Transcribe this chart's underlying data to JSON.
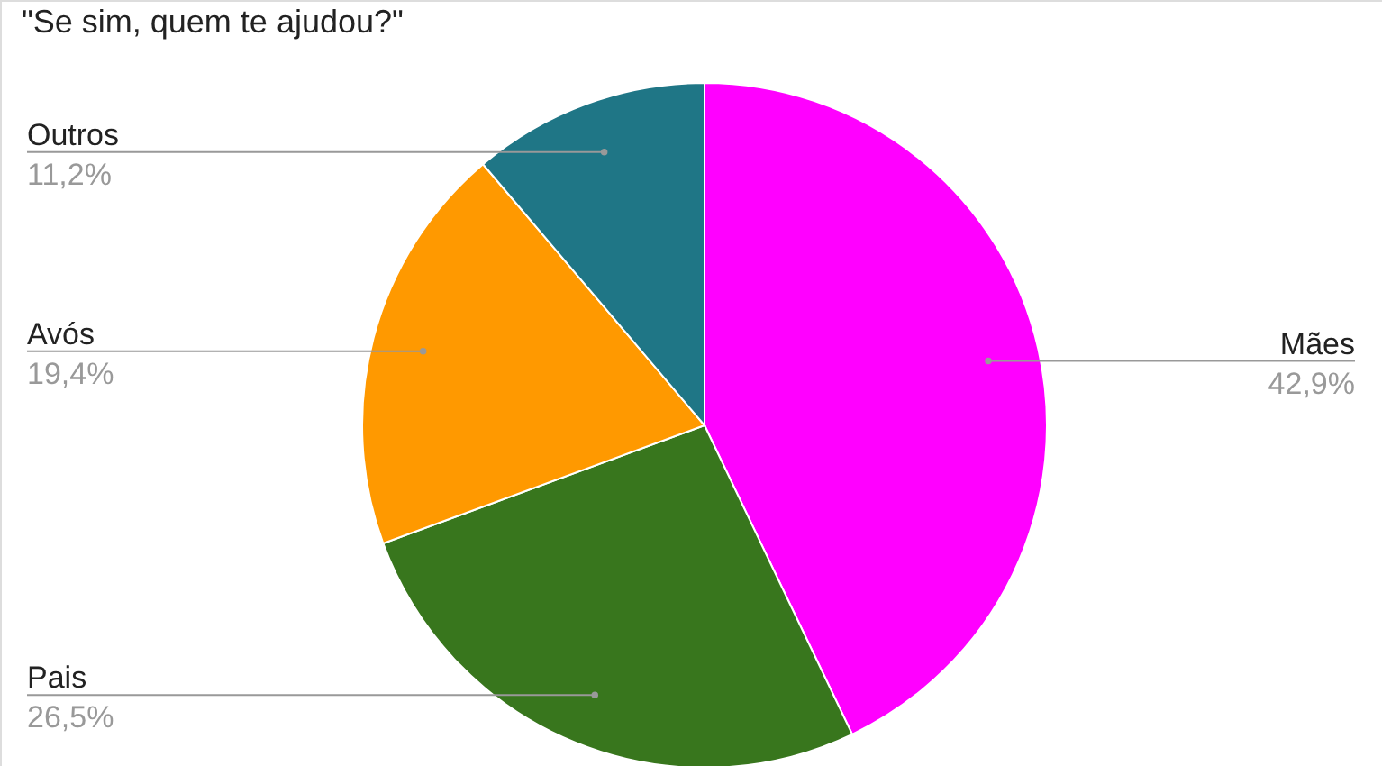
{
  "chart_data": {
    "type": "pie",
    "title": "\"Se sim, quem te ajudou?\"",
    "categories": [
      "Mães",
      "Pais",
      "Avós",
      "Outros"
    ],
    "values": [
      42.9,
      26.5,
      19.4,
      11.2
    ],
    "colors": [
      "#ff00ff",
      "#38761d",
      "#ff9900",
      "#1f7686"
    ],
    "value_labels": [
      "42,9%",
      "26,5%",
      "19,4%",
      "11,2%"
    ]
  }
}
